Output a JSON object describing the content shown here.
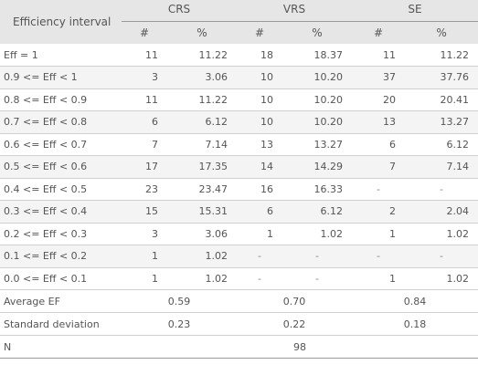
{
  "header": {
    "label": "Efficiency interval",
    "groups": [
      "CRS",
      "VRS",
      "SE"
    ],
    "count_label": "#",
    "pct_label": "%"
  },
  "rows": [
    {
      "label": "Eff = 1",
      "crs": [
        "11",
        "11.22"
      ],
      "vrs": [
        "18",
        "18.37"
      ],
      "se": [
        "11",
        "11.22"
      ]
    },
    {
      "label": "0.9 <= Eff < 1",
      "crs": [
        "3",
        "3.06"
      ],
      "vrs": [
        "10",
        "10.20"
      ],
      "se": [
        "37",
        "37.76"
      ]
    },
    {
      "label": "0.8 <= Eff < 0.9",
      "crs": [
        "11",
        "11.22"
      ],
      "vrs": [
        "10",
        "10.20"
      ],
      "se": [
        "20",
        "20.41"
      ]
    },
    {
      "label": "0.7 <= Eff < 0.8",
      "crs": [
        "6",
        "6.12"
      ],
      "vrs": [
        "10",
        "10.20"
      ],
      "se": [
        "13",
        "13.27"
      ]
    },
    {
      "label": "0.6 <= Eff < 0.7",
      "crs": [
        "7",
        "7.14"
      ],
      "vrs": [
        "13",
        "13.27"
      ],
      "se": [
        "6",
        "6.12"
      ]
    },
    {
      "label": "0.5 <= Eff < 0.6",
      "crs": [
        "17",
        "17.35"
      ],
      "vrs": [
        "14",
        "14.29"
      ],
      "se": [
        "7",
        "7.14"
      ]
    },
    {
      "label": "0.4 <= Eff < 0.5",
      "crs": [
        "23",
        "23.47"
      ],
      "vrs": [
        "16",
        "16.33"
      ],
      "se": [
        "-",
        "-"
      ]
    },
    {
      "label": "0.3 <= Eff < 0.4",
      "crs": [
        "15",
        "15.31"
      ],
      "vrs": [
        "6",
        "6.12"
      ],
      "se": [
        "2",
        "2.04"
      ]
    },
    {
      "label": "0.2 <= Eff < 0.3",
      "crs": [
        "3",
        "3.06"
      ],
      "vrs": [
        "1",
        "1.02"
      ],
      "se": [
        "1",
        "1.02"
      ]
    },
    {
      "label": "0.1 <= Eff < 0.2",
      "crs": [
        "1",
        "1.02"
      ],
      "vrs": [
        "-",
        "-"
      ],
      "se": [
        "-",
        "-"
      ]
    },
    {
      "label": "0.0 <= Eff < 0.1",
      "crs": [
        "1",
        "1.02"
      ],
      "vrs": [
        "-",
        "-"
      ],
      "se": [
        "1",
        "1.02"
      ]
    }
  ],
  "summary": [
    {
      "label": "Average EF",
      "crs": "0.59",
      "vrs": "0.70",
      "se": "0.84"
    },
    {
      "label": "Standard deviation",
      "crs": "0.23",
      "vrs": "0.22",
      "se": "0.18"
    }
  ],
  "n_row": {
    "label": "N",
    "value": "98"
  }
}
